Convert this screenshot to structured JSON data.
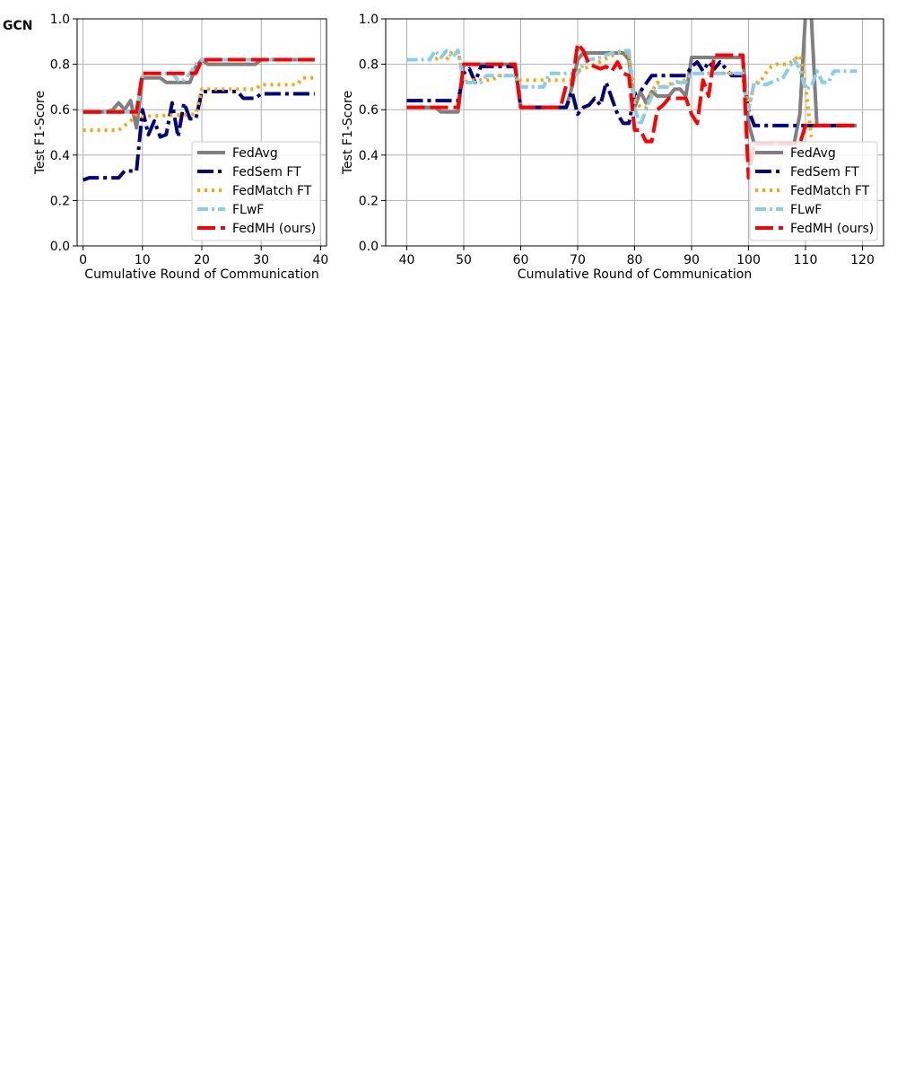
{
  "panel_label": "GCN",
  "colors": {
    "FedAvg": "#808080",
    "FedSem FT": "#000080",
    "FedMatch FT": "#FFA500",
    "FLwF": "#87CEEB",
    "FedMH (ours)": "#FF0000",
    "grid": "#b0b0b0"
  },
  "chart_data": [
    {
      "type": "line",
      "xlabel": "Cumulative Round of Communication",
      "ylabel": "Test F1-Score",
      "xlim": [
        -1,
        41
      ],
      "ylim": [
        0,
        1
      ],
      "xticks": [
        0,
        10,
        20,
        30,
        40
      ],
      "yticks": [
        0.0,
        0.2,
        0.4,
        0.6,
        0.8,
        1.0
      ],
      "grid": true,
      "legend_position": "lower right",
      "series": [
        {
          "name": "FedAvg",
          "points": [
            [
              0,
              0.59
            ],
            [
              4,
              0.59
            ],
            [
              5,
              0.6
            ],
            [
              6,
              0.63
            ],
            [
              7,
              0.6
            ],
            [
              8,
              0.64
            ],
            [
              9,
              0.52
            ],
            [
              10,
              0.74
            ],
            [
              13,
              0.74
            ],
            [
              14,
              0.72
            ],
            [
              18,
              0.72
            ],
            [
              19,
              0.79
            ],
            [
              20,
              0.82
            ],
            [
              21,
              0.8
            ],
            [
              29,
              0.8
            ],
            [
              30,
              0.82
            ],
            [
              39,
              0.82
            ]
          ]
        },
        {
          "name": "FedSem FT",
          "points": [
            [
              0,
              0.29
            ],
            [
              1,
              0.3
            ],
            [
              6,
              0.3
            ],
            [
              7,
              0.33
            ],
            [
              9,
              0.33
            ],
            [
              10,
              0.6
            ],
            [
              11,
              0.49
            ],
            [
              12,
              0.55
            ],
            [
              13,
              0.48
            ],
            [
              14,
              0.49
            ],
            [
              15,
              0.63
            ],
            [
              16,
              0.48
            ],
            [
              17,
              0.63
            ],
            [
              18,
              0.56
            ],
            [
              19,
              0.56
            ],
            [
              20,
              0.68
            ],
            [
              26,
              0.68
            ],
            [
              27,
              0.65
            ],
            [
              29,
              0.65
            ],
            [
              30,
              0.67
            ],
            [
              39,
              0.67
            ]
          ]
        },
        {
          "name": "FedMatch FT",
          "points": [
            [
              0,
              0.51
            ],
            [
              6,
              0.51
            ],
            [
              8,
              0.55
            ],
            [
              9,
              0.58
            ],
            [
              10,
              0.57
            ],
            [
              19,
              0.58
            ],
            [
              20,
              0.69
            ],
            [
              29,
              0.69
            ],
            [
              30,
              0.71
            ],
            [
              36,
              0.71
            ],
            [
              37,
              0.74
            ],
            [
              39,
              0.74
            ]
          ]
        },
        {
          "name": "FLwF",
          "points": [
            [
              0,
              0.59
            ],
            [
              8,
              0.59
            ],
            [
              9,
              0.58
            ],
            [
              10,
              0.76
            ],
            [
              15,
              0.76
            ],
            [
              16,
              0.73
            ],
            [
              17,
              0.73
            ],
            [
              18,
              0.76
            ],
            [
              19,
              0.8
            ],
            [
              20,
              0.82
            ],
            [
              39,
              0.82
            ]
          ]
        },
        {
          "name": "FedMH (ours)",
          "points": [
            [
              0,
              0.59
            ],
            [
              9,
              0.59
            ],
            [
              10,
              0.76
            ],
            [
              19,
              0.76
            ],
            [
              20,
              0.82
            ],
            [
              39,
              0.82
            ]
          ]
        }
      ]
    },
    {
      "type": "line",
      "xlabel": "Cumulative Round of Communication",
      "ylabel": "Test F1-Score",
      "xlim": [
        36.3,
        123.7
      ],
      "ylim": [
        0,
        1
      ],
      "xticks": [
        40,
        50,
        60,
        70,
        80,
        90,
        100,
        110,
        120
      ],
      "yticks": [
        0.0,
        0.2,
        0.4,
        0.6,
        0.8,
        1.0
      ],
      "grid": true,
      "legend_position": "lower right",
      "series": [
        {
          "name": "FedAvg",
          "points": [
            [
              40,
              0.61
            ],
            [
              45,
              0.61
            ],
            [
              46,
              0.59
            ],
            [
              49,
              0.59
            ],
            [
              50,
              0.8
            ],
            [
              59,
              0.8
            ],
            [
              60,
              0.61
            ],
            [
              68,
              0.61
            ],
            [
              69,
              0.7
            ],
            [
              70,
              0.82
            ],
            [
              71,
              0.85
            ],
            [
              78,
              0.85
            ],
            [
              79,
              0.82
            ],
            [
              80,
              0.61
            ],
            [
              81,
              0.68
            ],
            [
              82,
              0.63
            ],
            [
              83,
              0.68
            ],
            [
              84,
              0.66
            ],
            [
              86,
              0.66
            ],
            [
              87,
              0.69
            ],
            [
              88,
              0.69
            ],
            [
              89,
              0.66
            ],
            [
              90,
              0.83
            ],
            [
              99,
              0.83
            ],
            [
              100,
              0.54
            ],
            [
              101,
              0.45
            ],
            [
              108,
              0.45
            ],
            [
              109,
              0.58
            ],
            [
              110,
              1.02
            ],
            [
              111,
              1.02
            ],
            [
              112,
              0.53
            ],
            [
              119,
              0.53
            ]
          ]
        },
        {
          "name": "FedSem FT",
          "points": [
            [
              40,
              0.64
            ],
            [
              49,
              0.64
            ],
            [
              50,
              0.76
            ],
            [
              51,
              0.78
            ],
            [
              52,
              0.72
            ],
            [
              53,
              0.79
            ],
            [
              59,
              0.79
            ],
            [
              60,
              0.61
            ],
            [
              68,
              0.61
            ],
            [
              69,
              0.68
            ],
            [
              70,
              0.58
            ],
            [
              71,
              0.61
            ],
            [
              72,
              0.62
            ],
            [
              73,
              0.65
            ],
            [
              74,
              0.62
            ],
            [
              75,
              0.72
            ],
            [
              76,
              0.65
            ],
            [
              77,
              0.58
            ],
            [
              78,
              0.54
            ],
            [
              79,
              0.54
            ],
            [
              80,
              0.67
            ],
            [
              81,
              0.68
            ],
            [
              83,
              0.75
            ],
            [
              89,
              0.75
            ],
            [
              90,
              0.79
            ],
            [
              91,
              0.81
            ],
            [
              92,
              0.77
            ],
            [
              93,
              0.81
            ],
            [
              94,
              0.78
            ],
            [
              95,
              0.81
            ],
            [
              97,
              0.75
            ],
            [
              99,
              0.75
            ],
            [
              100,
              0.6
            ],
            [
              101,
              0.53
            ],
            [
              119,
              0.53
            ]
          ]
        },
        {
          "name": "FedMatch FT",
          "points": [
            [
              40,
              0.82
            ],
            [
              45,
              0.82
            ],
            [
              46,
              0.84
            ],
            [
              47,
              0.82
            ],
            [
              48,
              0.86
            ],
            [
              49,
              0.86
            ],
            [
              50,
              0.72
            ],
            [
              51,
              0.73
            ],
            [
              55,
              0.73
            ],
            [
              56,
              0.75
            ],
            [
              59,
              0.75
            ],
            [
              60,
              0.73
            ],
            [
              69,
              0.73
            ],
            [
              70,
              0.77
            ],
            [
              73,
              0.8
            ],
            [
              77,
              0.85
            ],
            [
              79,
              0.85
            ],
            [
              80,
              0.65
            ],
            [
              81,
              0.61
            ],
            [
              82,
              0.61
            ],
            [
              83,
              0.68
            ],
            [
              84,
              0.72
            ],
            [
              85,
              0.7
            ],
            [
              87,
              0.72
            ],
            [
              89,
              0.73
            ],
            [
              90,
              0.76
            ],
            [
              99,
              0.76
            ],
            [
              100,
              0.6
            ],
            [
              101,
              0.72
            ],
            [
              102,
              0.72
            ],
            [
              103,
              0.76
            ],
            [
              104,
              0.79
            ],
            [
              105,
              0.8
            ],
            [
              107,
              0.8
            ],
            [
              108,
              0.82
            ],
            [
              109,
              0.84
            ],
            [
              110,
              0.71
            ],
            [
              111,
              0.48
            ]
          ]
        },
        {
          "name": "FLwF",
          "points": [
            [
              40,
              0.82
            ],
            [
              44,
              0.82
            ],
            [
              45,
              0.86
            ],
            [
              46,
              0.83
            ],
            [
              47,
              0.86
            ],
            [
              48,
              0.83
            ],
            [
              49,
              0.86
            ],
            [
              50,
              0.72
            ],
            [
              53,
              0.72
            ],
            [
              54,
              0.75
            ],
            [
              59,
              0.75
            ],
            [
              60,
              0.7
            ],
            [
              64,
              0.7
            ],
            [
              65,
              0.76
            ],
            [
              70,
              0.76
            ],
            [
              71,
              0.8
            ],
            [
              72,
              0.82
            ],
            [
              74,
              0.83
            ],
            [
              76,
              0.85
            ],
            [
              78,
              0.86
            ],
            [
              79,
              0.86
            ],
            [
              80,
              0.61
            ],
            [
              81,
              0.53
            ],
            [
              82,
              0.6
            ],
            [
              83,
              0.66
            ],
            [
              84,
              0.7
            ],
            [
              86,
              0.7
            ],
            [
              87,
              0.72
            ],
            [
              89,
              0.72
            ],
            [
              90,
              0.76
            ],
            [
              99,
              0.76
            ],
            [
              100,
              0.6
            ],
            [
              101,
              0.72
            ],
            [
              103,
              0.71
            ],
            [
              106,
              0.74
            ],
            [
              107,
              0.78
            ],
            [
              108,
              0.82
            ],
            [
              109,
              0.78
            ],
            [
              110,
              0.69
            ],
            [
              111,
              0.7
            ],
            [
              112,
              0.77
            ],
            [
              113,
              0.72
            ],
            [
              114,
              0.72
            ],
            [
              115,
              0.77
            ],
            [
              119,
              0.77
            ]
          ]
        },
        {
          "name": "FedMH (ours)",
          "points": [
            [
              40,
              0.61
            ],
            [
              49,
              0.61
            ],
            [
              50,
              0.8
            ],
            [
              59,
              0.8
            ],
            [
              60,
              0.61
            ],
            [
              67,
              0.61
            ],
            [
              68,
              0.71
            ],
            [
              69,
              0.71
            ],
            [
              70,
              0.89
            ],
            [
              71,
              0.86
            ],
            [
              72,
              0.8
            ],
            [
              74,
              0.78
            ],
            [
              75,
              0.79
            ],
            [
              76,
              0.77
            ],
            [
              77,
              0.81
            ],
            [
              78,
              0.76
            ],
            [
              79,
              0.75
            ],
            [
              80,
              0.51
            ],
            [
              81,
              0.51
            ],
            [
              82,
              0.46
            ],
            [
              83,
              0.46
            ],
            [
              84,
              0.6
            ],
            [
              85,
              0.62
            ],
            [
              86,
              0.65
            ],
            [
              89,
              0.65
            ],
            [
              90,
              0.58
            ],
            [
              91,
              0.54
            ],
            [
              92,
              0.73
            ],
            [
              93,
              0.66
            ],
            [
              94,
              0.84
            ],
            [
              99,
              0.84
            ],
            [
              100,
              0.3
            ],
            [
              101,
              0.45
            ],
            [
              109,
              0.45
            ],
            [
              110,
              0.53
            ],
            [
              119,
              0.53
            ]
          ]
        }
      ]
    }
  ]
}
